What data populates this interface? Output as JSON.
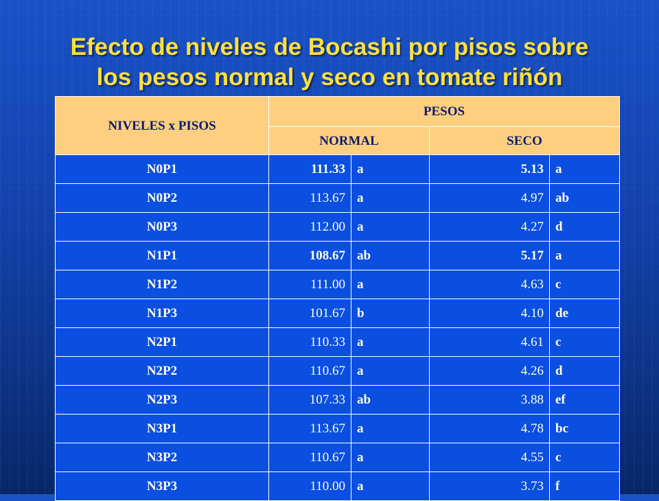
{
  "title": {
    "line1": "Efecto de niveles de Bocashi por pisos sobre",
    "line2": "los pesos normal y seco en tomate riñón"
  },
  "table": {
    "headers": {
      "group": "NIVELES x PISOS",
      "pesos": "PESOS",
      "normal": "NORMAL",
      "seco": "SECO"
    },
    "rows": [
      {
        "id": "N0P1",
        "normal": "111.33",
        "normal_letter": "a",
        "seco": "5.13",
        "seco_letter": "a"
      },
      {
        "id": "N0P2",
        "normal": "113.67",
        "normal_letter": "a",
        "seco": "4.97",
        "seco_letter": "ab"
      },
      {
        "id": "N0P3",
        "normal": "112.00",
        "normal_letter": "a",
        "seco": "4.27",
        "seco_letter": "d"
      },
      {
        "id": "N1P1",
        "normal": "108.67",
        "normal_letter": "ab",
        "seco": "5.17",
        "seco_letter": "a"
      },
      {
        "id": "N1P2",
        "normal": "111.00",
        "normal_letter": "a",
        "seco": "4.63",
        "seco_letter": "c"
      },
      {
        "id": "N1P3",
        "normal": "101.67",
        "normal_letter": "b",
        "seco": "4.10",
        "seco_letter": "de"
      },
      {
        "id": "N2P1",
        "normal": "110.33",
        "normal_letter": "a",
        "seco": "4.61",
        "seco_letter": "c"
      },
      {
        "id": "N2P2",
        "normal": "110.67",
        "normal_letter": "a",
        "seco": "4.26",
        "seco_letter": "d"
      },
      {
        "id": "N2P3",
        "normal": "107.33",
        "normal_letter": "ab",
        "seco": "3.88",
        "seco_letter": "ef"
      },
      {
        "id": "N3P1",
        "normal": "113.67",
        "normal_letter": "a",
        "seco": "4.78",
        "seco_letter": "bc"
      },
      {
        "id": "N3P2",
        "normal": "110.67",
        "normal_letter": "a",
        "seco": "4.55",
        "seco_letter": "c"
      },
      {
        "id": "N3P3",
        "normal": "110.00",
        "normal_letter": "a",
        "seco": "3.73",
        "seco_letter": "f"
      }
    ]
  }
}
